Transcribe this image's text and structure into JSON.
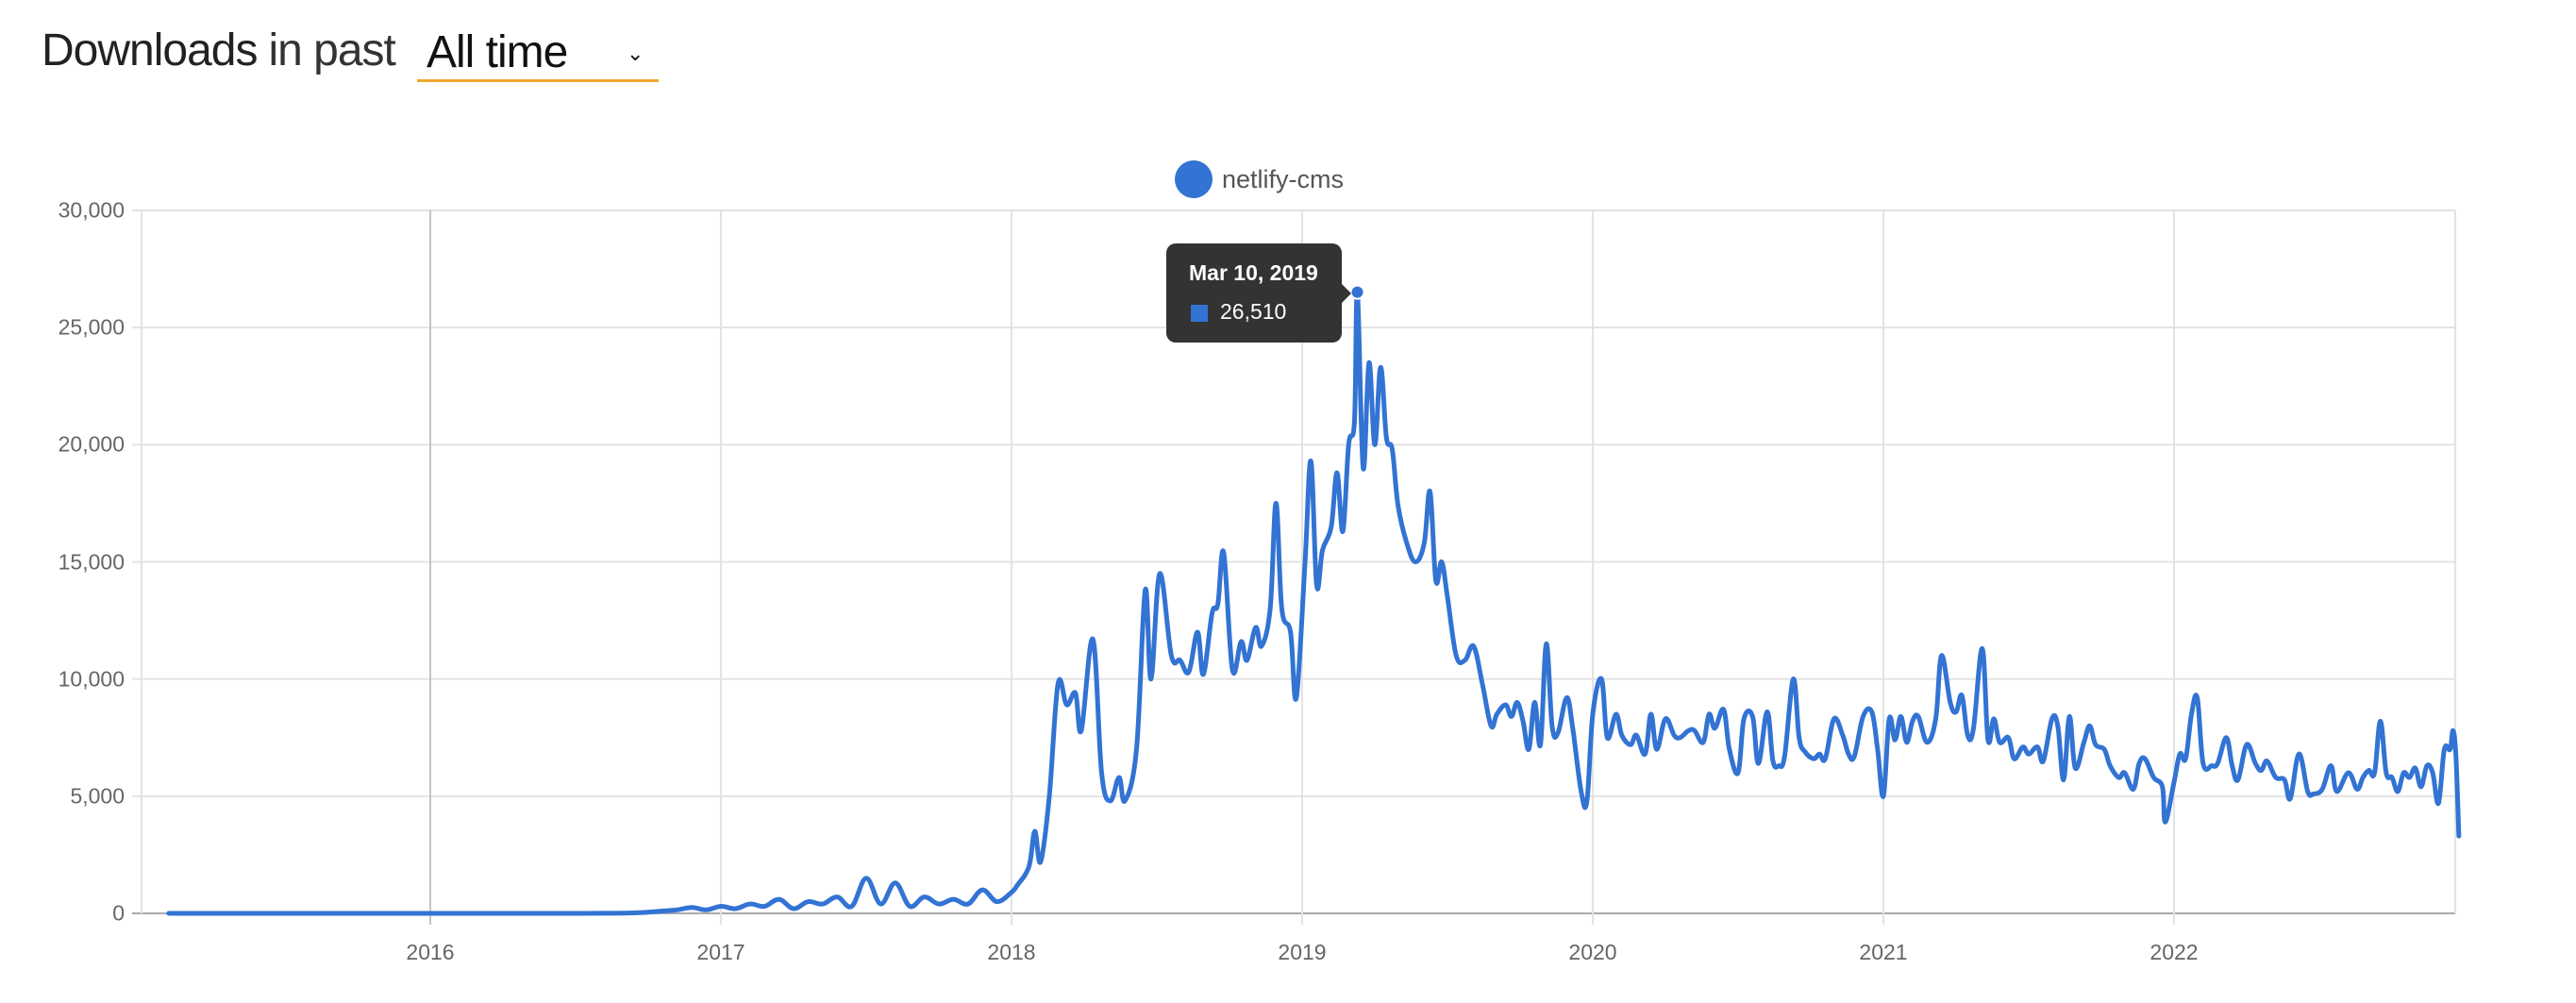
{
  "header": {
    "title_strong": "Downloads",
    "title_light": "in past",
    "period_select": {
      "value": "All time",
      "icon": "chevron-down-icon"
    }
  },
  "colors": {
    "series": "#3273d3",
    "select_underline": "#f0a92e",
    "tooltip_bg": "#333333",
    "grid": "#e3e3e3"
  },
  "tooltip": {
    "date": "Mar 10, 2019",
    "value": "26,510"
  },
  "chart_data": {
    "type": "line",
    "title": "",
    "xlabel": "",
    "ylabel": "",
    "legend": [
      "netlify-cms"
    ],
    "legend_position": "top",
    "grid": true,
    "ylim": [
      0,
      30000
    ],
    "xlim": [
      2015.1,
      2022.98
    ],
    "yticks": [
      "0",
      "5,000",
      "10,000",
      "15,000",
      "20,000",
      "25,000",
      "30,000"
    ],
    "ytick_values": [
      0,
      5000,
      10000,
      15000,
      20000,
      25000,
      30000
    ],
    "xticks": [
      "2016",
      "2017",
      "2018",
      "2019",
      "2020",
      "2021",
      "2022"
    ],
    "xtick_values": [
      2016,
      2017,
      2018,
      2019,
      2020,
      2021,
      2022
    ],
    "series": [
      {
        "name": "netlify-cms",
        "points": [
          [
            2015.1,
            0
          ],
          [
            2015.5,
            0
          ],
          [
            2016.0,
            0
          ],
          [
            2016.5,
            0
          ],
          [
            2016.7,
            20
          ],
          [
            2016.8,
            100
          ],
          [
            2016.85,
            150
          ],
          [
            2016.9,
            250
          ],
          [
            2016.95,
            150
          ],
          [
            2017.0,
            300
          ],
          [
            2017.05,
            200
          ],
          [
            2017.1,
            400
          ],
          [
            2017.15,
            300
          ],
          [
            2017.2,
            600
          ],
          [
            2017.25,
            200
          ],
          [
            2017.3,
            500
          ],
          [
            2017.35,
            400
          ],
          [
            2017.4,
            700
          ],
          [
            2017.45,
            300
          ],
          [
            2017.5,
            1500
          ],
          [
            2017.55,
            400
          ],
          [
            2017.6,
            1300
          ],
          [
            2017.65,
            300
          ],
          [
            2017.7,
            700
          ],
          [
            2017.75,
            400
          ],
          [
            2017.8,
            600
          ],
          [
            2017.85,
            400
          ],
          [
            2017.9,
            1000
          ],
          [
            2017.95,
            500
          ],
          [
            2018.0,
            900
          ],
          [
            2018.02,
            1200
          ],
          [
            2018.06,
            2000
          ],
          [
            2018.08,
            3500
          ],
          [
            2018.1,
            2200
          ],
          [
            2018.13,
            5000
          ],
          [
            2018.16,
            9800
          ],
          [
            2018.19,
            8900
          ],
          [
            2018.22,
            9400
          ],
          [
            2018.24,
            7800
          ],
          [
            2018.28,
            11700
          ],
          [
            2018.31,
            6000
          ],
          [
            2018.34,
            4800
          ],
          [
            2018.37,
            5800
          ],
          [
            2018.39,
            4800
          ],
          [
            2018.43,
            7000
          ],
          [
            2018.46,
            13800
          ],
          [
            2018.48,
            10000
          ],
          [
            2018.51,
            14500
          ],
          [
            2018.55,
            11000
          ],
          [
            2018.58,
            10800
          ],
          [
            2018.61,
            10300
          ],
          [
            2018.64,
            12000
          ],
          [
            2018.66,
            10200
          ],
          [
            2018.69,
            12800
          ],
          [
            2018.71,
            13200
          ],
          [
            2018.73,
            15400
          ],
          [
            2018.76,
            10400
          ],
          [
            2018.79,
            11600
          ],
          [
            2018.81,
            10800
          ],
          [
            2018.84,
            12200
          ],
          [
            2018.86,
            11400
          ],
          [
            2018.89,
            13000
          ],
          [
            2018.91,
            17500
          ],
          [
            2018.93,
            13000
          ],
          [
            2018.96,
            12000
          ],
          [
            2018.98,
            9200
          ],
          [
            2019.01,
            15000
          ],
          [
            2019.03,
            19300
          ],
          [
            2019.05,
            14000
          ],
          [
            2019.07,
            15500
          ],
          [
            2019.1,
            16500
          ],
          [
            2019.12,
            18800
          ],
          [
            2019.14,
            16300
          ],
          [
            2019.16,
            20000
          ],
          [
            2019.18,
            21000
          ],
          [
            2019.19,
            26510
          ],
          [
            2019.21,
            19000
          ],
          [
            2019.23,
            23500
          ],
          [
            2019.25,
            20000
          ],
          [
            2019.27,
            23300
          ],
          [
            2019.29,
            20300
          ],
          [
            2019.31,
            19800
          ],
          [
            2019.33,
            17400
          ],
          [
            2019.36,
            15800
          ],
          [
            2019.39,
            15000
          ],
          [
            2019.42,
            15800
          ],
          [
            2019.44,
            18000
          ],
          [
            2019.46,
            14200
          ],
          [
            2019.48,
            15000
          ],
          [
            2019.5,
            13500
          ],
          [
            2019.53,
            11000
          ],
          [
            2019.56,
            10800
          ],
          [
            2019.59,
            11400
          ],
          [
            2019.62,
            9800
          ],
          [
            2019.65,
            8000
          ],
          [
            2019.67,
            8500
          ],
          [
            2019.7,
            8900
          ],
          [
            2019.72,
            8400
          ],
          [
            2019.74,
            9000
          ],
          [
            2019.76,
            8200
          ],
          [
            2019.78,
            7000
          ],
          [
            2019.8,
            9000
          ],
          [
            2019.82,
            7200
          ],
          [
            2019.84,
            11500
          ],
          [
            2019.86,
            8000
          ],
          [
            2019.88,
            7700
          ],
          [
            2019.91,
            9200
          ],
          [
            2019.93,
            8000
          ],
          [
            2019.96,
            5200
          ],
          [
            2019.98,
            4800
          ],
          [
            2020.0,
            8500
          ],
          [
            2020.03,
            10000
          ],
          [
            2020.05,
            7500
          ],
          [
            2020.08,
            8500
          ],
          [
            2020.1,
            7600
          ],
          [
            2020.13,
            7200
          ],
          [
            2020.15,
            7600
          ],
          [
            2020.18,
            6800
          ],
          [
            2020.2,
            8500
          ],
          [
            2020.22,
            7000
          ],
          [
            2020.25,
            8300
          ],
          [
            2020.28,
            7600
          ],
          [
            2020.3,
            7500
          ],
          [
            2020.33,
            7800
          ],
          [
            2020.35,
            7800
          ],
          [
            2020.38,
            7300
          ],
          [
            2020.4,
            8500
          ],
          [
            2020.42,
            7900
          ],
          [
            2020.45,
            8700
          ],
          [
            2020.47,
            7000
          ],
          [
            2020.5,
            6000
          ],
          [
            2020.52,
            8300
          ],
          [
            2020.55,
            8400
          ],
          [
            2020.57,
            6400
          ],
          [
            2020.6,
            8600
          ],
          [
            2020.62,
            6500
          ],
          [
            2020.64,
            6300
          ],
          [
            2020.66,
            6700
          ],
          [
            2020.69,
            10000
          ],
          [
            2020.71,
            7500
          ],
          [
            2020.73,
            6900
          ],
          [
            2020.76,
            6600
          ],
          [
            2020.78,
            6800
          ],
          [
            2020.8,
            6600
          ],
          [
            2020.83,
            8300
          ],
          [
            2020.86,
            7600
          ],
          [
            2020.88,
            6800
          ],
          [
            2020.9,
            6700
          ],
          [
            2020.93,
            8400
          ],
          [
            2020.96,
            8600
          ],
          [
            2020.98,
            7000
          ],
          [
            2021.0,
            5000
          ],
          [
            2021.02,
            8300
          ],
          [
            2021.04,
            7400
          ],
          [
            2021.06,
            8400
          ],
          [
            2021.08,
            7300
          ],
          [
            2021.1,
            8200
          ],
          [
            2021.12,
            8400
          ],
          [
            2021.15,
            7300
          ],
          [
            2021.18,
            8300
          ],
          [
            2021.2,
            11000
          ],
          [
            2021.23,
            9000
          ],
          [
            2021.25,
            8600
          ],
          [
            2021.27,
            9300
          ],
          [
            2021.29,
            7600
          ],
          [
            2021.31,
            7900
          ],
          [
            2021.34,
            11300
          ],
          [
            2021.36,
            7400
          ],
          [
            2021.38,
            8300
          ],
          [
            2021.4,
            7300
          ],
          [
            2021.43,
            7500
          ],
          [
            2021.45,
            6600
          ],
          [
            2021.48,
            7100
          ],
          [
            2021.5,
            6800
          ],
          [
            2021.53,
            7100
          ],
          [
            2021.55,
            6500
          ],
          [
            2021.58,
            8300
          ],
          [
            2021.6,
            8000
          ],
          [
            2021.62,
            5700
          ],
          [
            2021.64,
            8400
          ],
          [
            2021.66,
            6200
          ],
          [
            2021.69,
            7300
          ],
          [
            2021.71,
            8000
          ],
          [
            2021.73,
            7200
          ],
          [
            2021.76,
            7000
          ],
          [
            2021.78,
            6300
          ],
          [
            2021.81,
            5800
          ],
          [
            2021.83,
            6000
          ],
          [
            2021.86,
            5300
          ],
          [
            2021.88,
            6400
          ],
          [
            2021.9,
            6600
          ],
          [
            2021.93,
            5800
          ],
          [
            2021.96,
            5400
          ],
          [
            2021.97,
            3900
          ],
          [
            2022.0,
            5600
          ],
          [
            2022.02,
            6800
          ],
          [
            2022.04,
            6600
          ],
          [
            2022.06,
            8500
          ],
          [
            2022.08,
            9200
          ],
          [
            2022.1,
            6400
          ],
          [
            2022.13,
            6300
          ],
          [
            2022.15,
            6400
          ],
          [
            2022.18,
            7500
          ],
          [
            2022.2,
            6300
          ],
          [
            2022.22,
            5700
          ],
          [
            2022.25,
            7200
          ],
          [
            2022.28,
            6400
          ],
          [
            2022.3,
            6100
          ],
          [
            2022.32,
            6500
          ],
          [
            2022.35,
            5800
          ],
          [
            2022.38,
            5700
          ],
          [
            2022.4,
            4900
          ],
          [
            2022.43,
            6800
          ],
          [
            2022.46,
            5200
          ],
          [
            2022.48,
            5100
          ],
          [
            2022.51,
            5300
          ],
          [
            2022.54,
            6300
          ],
          [
            2022.56,
            5200
          ],
          [
            2022.6,
            6000
          ],
          [
            2022.63,
            5300
          ],
          [
            2022.65,
            5800
          ],
          [
            2022.67,
            6100
          ],
          [
            2022.69,
            6000
          ],
          [
            2022.71,
            8200
          ],
          [
            2022.73,
            6000
          ],
          [
            2022.75,
            5800
          ],
          [
            2022.77,
            5200
          ],
          [
            2022.79,
            6000
          ],
          [
            2022.81,
            5800
          ],
          [
            2022.83,
            6200
          ],
          [
            2022.85,
            5400
          ],
          [
            2022.87,
            6300
          ],
          [
            2022.89,
            6000
          ],
          [
            2022.91,
            4700
          ],
          [
            2022.93,
            7000
          ],
          [
            2022.95,
            7000
          ],
          [
            2022.96,
            7800
          ],
          [
            2022.97,
            6700
          ],
          [
            2022.98,
            3300
          ]
        ]
      }
    ],
    "highlight": {
      "x": 2019.19,
      "label": "Mar 10, 2019",
      "value": 26510
    }
  }
}
